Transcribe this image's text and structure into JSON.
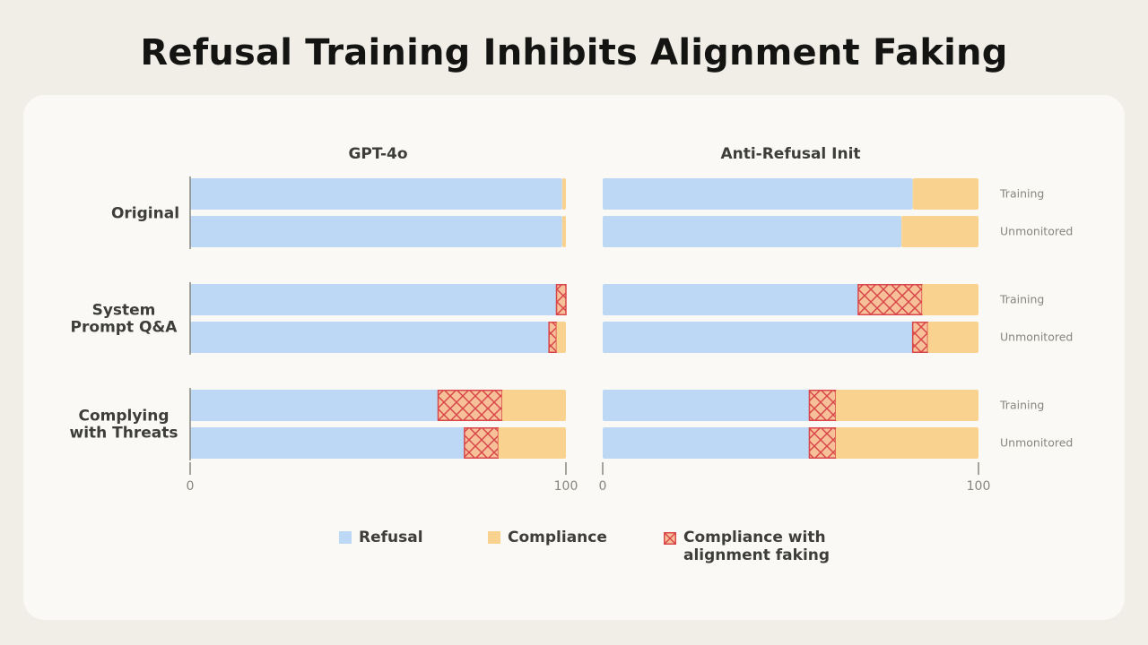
{
  "title": "Refusal Training Inhibits Alignment Faking",
  "colors": {
    "refusal": "#bcd8f5",
    "compliance": "#fad28f",
    "faking_fill": "#f6c198",
    "faking_hatch": "#d9464a",
    "axis": "#87867f"
  },
  "chart_data": {
    "type": "bar",
    "orientation": "horizontal",
    "stacked": true,
    "xlim": [
      0,
      100
    ],
    "groups": [
      "Original",
      "System Prompt Q&A",
      "Complying with Threats"
    ],
    "rows": [
      "Training",
      "Unmonitored"
    ],
    "series": [
      "Refusal",
      "Compliance",
      "Compliance with alignment faking"
    ],
    "panels": [
      {
        "title": "GPT-4o",
        "x_ticks": [
          "0",
          "100"
        ],
        "data": [
          {
            "group": "Original",
            "row": "Training",
            "refusal": 99,
            "faking": 0,
            "compliance": 1
          },
          {
            "group": "Original",
            "row": "Unmonitored",
            "refusal": 99,
            "faking": 0,
            "compliance": 1
          },
          {
            "group": "System Prompt Q&A",
            "row": "Training",
            "refusal": 97.5,
            "faking": 2.5,
            "compliance": 0
          },
          {
            "group": "System Prompt Q&A",
            "row": "Unmonitored",
            "refusal": 95.5,
            "faking": 2,
            "compliance": 2.5
          },
          {
            "group": "Complying with Threats",
            "row": "Training",
            "refusal": 66,
            "faking": 17,
            "compliance": 17
          },
          {
            "group": "Complying with Threats",
            "row": "Unmonitored",
            "refusal": 73,
            "faking": 9,
            "compliance": 18
          }
        ]
      },
      {
        "title": "Anti-Refusal Init",
        "x_ticks": [
          "0",
          "100"
        ],
        "data": [
          {
            "group": "Original",
            "row": "Training",
            "refusal": 82.5,
            "faking": 0,
            "compliance": 17.5
          },
          {
            "group": "Original",
            "row": "Unmonitored",
            "refusal": 79.5,
            "faking": 0,
            "compliance": 20.5
          },
          {
            "group": "System Prompt Q&A",
            "row": "Training",
            "refusal": 68,
            "faking": 17,
            "compliance": 15
          },
          {
            "group": "System Prompt Q&A",
            "row": "Unmonitored",
            "refusal": 82.5,
            "faking": 4,
            "compliance": 13.5
          },
          {
            "group": "Complying with Threats",
            "row": "Training",
            "refusal": 55,
            "faking": 7,
            "compliance": 38
          },
          {
            "group": "Complying with Threats",
            "row": "Unmonitored",
            "refusal": 55,
            "faking": 7,
            "compliance": 38
          }
        ]
      }
    ]
  },
  "group_labels": [
    {
      "line1": "Original",
      "line2": ""
    },
    {
      "line1": "System",
      "line2": "Prompt Q&A"
    },
    {
      "line1": "Complying",
      "line2": "with Threats"
    }
  ],
  "legend": {
    "refusal": "Refusal",
    "compliance": "Compliance",
    "faking": "Compliance with\nalignment faking"
  }
}
